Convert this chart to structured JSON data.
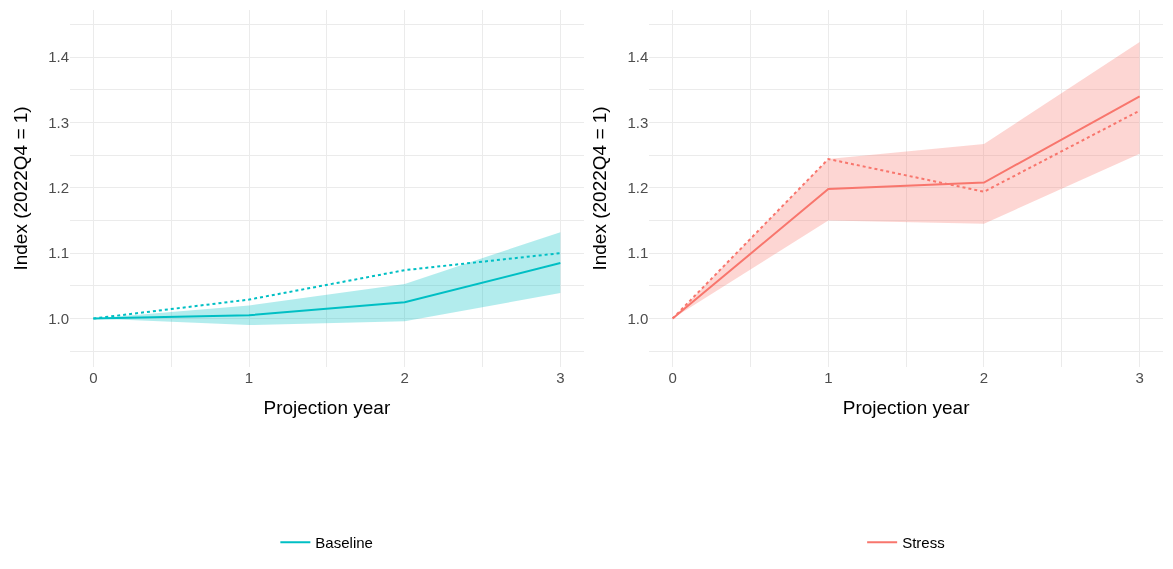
{
  "chart_data": [
    {
      "type": "line",
      "xlabel": "Projection year",
      "ylabel": "Index (2022Q4 = 1)",
      "x": [
        0,
        1,
        2,
        3
      ],
      "series": [
        {
          "name": "Baseline",
          "color": "#00bfc4",
          "values": [
            1.0,
            1.005,
            1.025,
            1.085
          ],
          "lower": [
            1.0,
            0.99,
            0.996,
            1.039
          ],
          "upper": [
            1.0,
            1.02,
            1.053,
            1.132
          ],
          "line_style": "solid"
        },
        {
          "color": "#00bfc4",
          "values": [
            1.0,
            1.029,
            1.074,
            1.1
          ],
          "line_style": "dotted"
        }
      ],
      "xlim": [
        -0.15,
        3.15
      ],
      "ylim": [
        0.926,
        1.472
      ],
      "xticks": [
        0,
        {
          "value": 0.5,
          "label": null
        },
        1,
        {
          "value": 1.5,
          "label": null
        },
        2,
        {
          "value": 2.5,
          "label": null
        },
        3
      ],
      "yticks": [
        {
          "value": 0.95,
          "label": null
        },
        {
          "value": 1,
          "label": "1.0"
        },
        {
          "value": 1.05,
          "label": null
        },
        1.1,
        {
          "value": 1.15,
          "label": null
        },
        1.2,
        {
          "value": 1.25,
          "label": null
        },
        1.3,
        {
          "value": 1.35,
          "label": null
        },
        1.4,
        {
          "value": 1.45,
          "label": null
        }
      ],
      "grid": true,
      "legend": "bottom",
      "marker": "none"
    },
    {
      "type": "line",
      "xlabel": "Projection year",
      "ylabel": "Index (2022Q4 = 1)",
      "x": [
        0,
        1,
        2,
        3
      ],
      "series": [
        {
          "name": "Stress",
          "color": "#f8766d",
          "values": [
            1.0,
            1.198,
            1.208,
            1.34
          ],
          "lower": [
            1.0,
            1.15,
            1.145,
            1.252
          ],
          "upper": [
            1.0,
            1.244,
            1.267,
            1.423
          ],
          "line_style": "solid"
        },
        {
          "color": "#f8766d",
          "values": [
            1.0,
            1.244,
            1.194,
            1.318
          ],
          "line_style": "dotted"
        }
      ],
      "xlim": [
        -0.15,
        3.15
      ],
      "ylim": [
        0.926,
        1.472
      ],
      "xticks": [
        0,
        {
          "value": 0.5,
          "label": null
        },
        1,
        {
          "value": 1.5,
          "label": null
        },
        2,
        {
          "value": 2.5,
          "label": null
        },
        3
      ],
      "yticks": [
        {
          "value": 0.95,
          "label": null
        },
        {
          "value": 1,
          "label": "1.0"
        },
        {
          "value": 1.05,
          "label": null
        },
        1.1,
        {
          "value": 1.15,
          "label": null
        },
        1.2,
        {
          "value": 1.25,
          "label": null
        },
        1.3,
        {
          "value": 1.35,
          "label": null
        },
        1.4,
        {
          "value": 1.45,
          "label": null
        }
      ],
      "grid": true,
      "legend": "bottom",
      "marker": "none"
    }
  ]
}
